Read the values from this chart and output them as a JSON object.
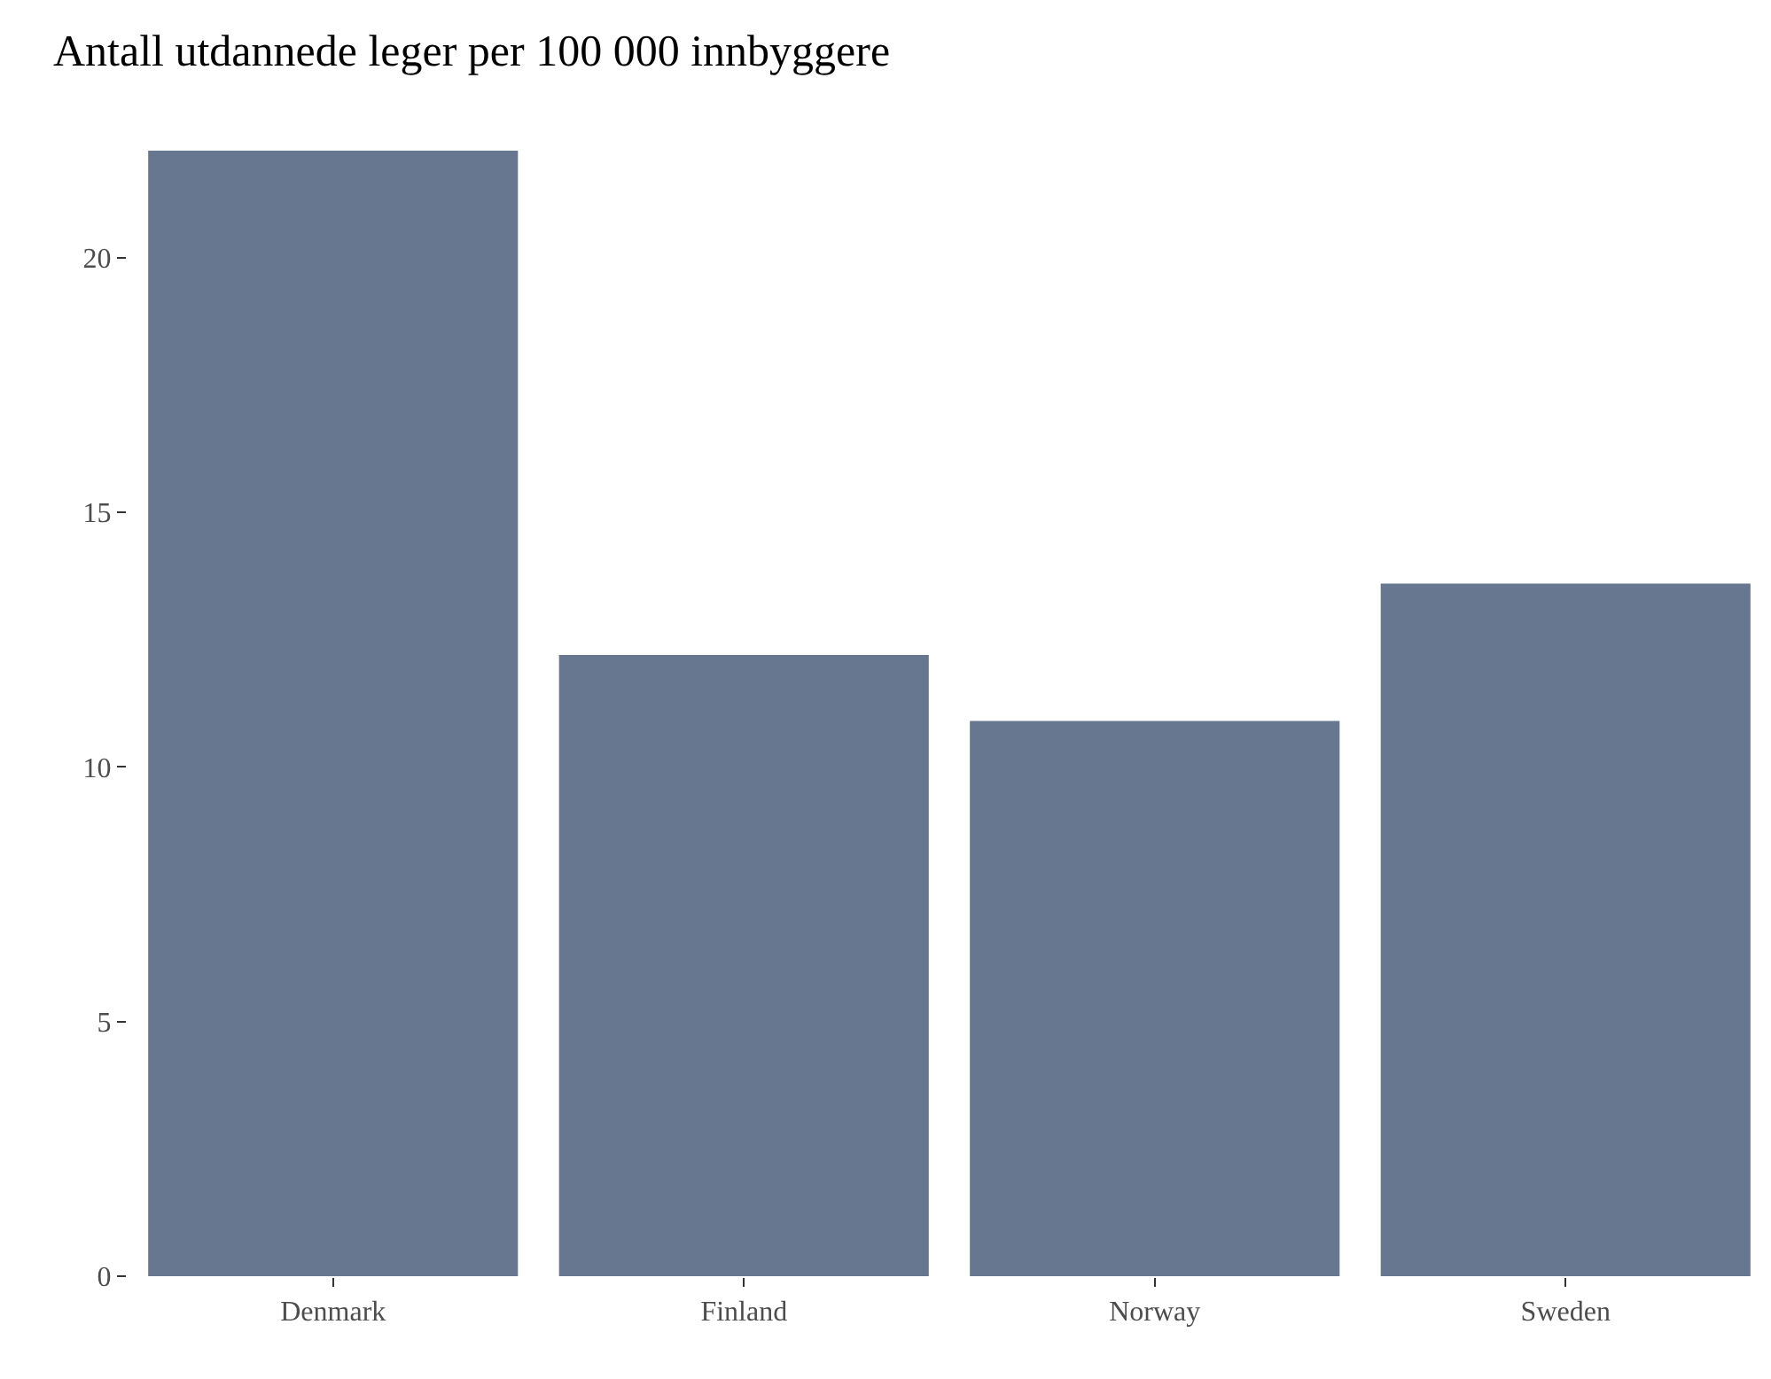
{
  "chart_data": {
    "type": "bar",
    "title": "Antall utdannede leger per 100 000 innbyggere",
    "categories": [
      "Denmark",
      "Finland",
      "Norway",
      "Sweden"
    ],
    "values": [
      22.1,
      12.2,
      10.9,
      13.6
    ],
    "color": "#67778f",
    "ylim": [
      0,
      22.1
    ],
    "yticks": [
      0,
      5,
      10,
      15,
      20
    ]
  }
}
